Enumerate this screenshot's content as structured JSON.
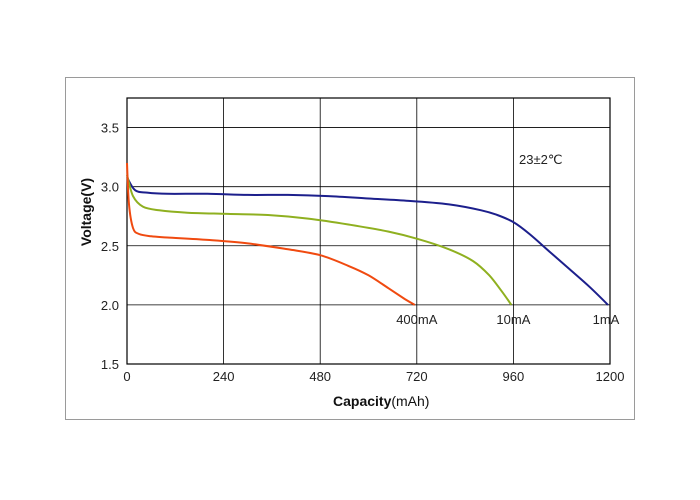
{
  "chart_data": {
    "type": "line",
    "title": "",
    "xlabel_bold": "Capacity",
    "xlabel_unit": "(mAh)",
    "ylabel": "Voltage(V)",
    "xlim": [
      0,
      1200
    ],
    "ylim": [
      1.5,
      3.75
    ],
    "xticks": [
      "0",
      "240",
      "480",
      "720",
      "960",
      "1200"
    ],
    "xtick_values": [
      0,
      240,
      480,
      720,
      960,
      1200
    ],
    "yticks": [
      "1.5",
      "2.0",
      "2.5",
      "3.0",
      "3.5"
    ],
    "ytick_values": [
      1.5,
      2.0,
      2.5,
      3.0,
      3.5
    ],
    "grid": true,
    "annotation": "23±2℃",
    "series": [
      {
        "name": "1mA",
        "color": "#1c1f8c",
        "x": [
          0,
          20,
          50,
          100,
          200,
          300,
          400,
          500,
          600,
          700,
          800,
          880,
          920,
          960,
          1000,
          1050,
          1100,
          1150,
          1195
        ],
        "y": [
          3.08,
          2.97,
          2.95,
          2.94,
          2.94,
          2.93,
          2.93,
          2.92,
          2.9,
          2.88,
          2.85,
          2.8,
          2.76,
          2.7,
          2.6,
          2.45,
          2.3,
          2.15,
          2.0
        ]
      },
      {
        "name": "10mA",
        "color": "#8fb020",
        "x": [
          0,
          15,
          40,
          80,
          150,
          250,
          350,
          450,
          550,
          650,
          720,
          800,
          860,
          900,
          930,
          955
        ],
        "y": [
          3.1,
          2.92,
          2.83,
          2.8,
          2.78,
          2.77,
          2.76,
          2.73,
          2.68,
          2.62,
          2.56,
          2.47,
          2.37,
          2.25,
          2.12,
          2.0
        ]
      },
      {
        "name": "400mA",
        "color": "#f04a10",
        "x": [
          0,
          5,
          15,
          30,
          60,
          100,
          200,
          300,
          400,
          480,
          550,
          600,
          650,
          690,
          715
        ],
        "y": [
          3.2,
          2.85,
          2.65,
          2.6,
          2.58,
          2.57,
          2.55,
          2.52,
          2.47,
          2.42,
          2.33,
          2.25,
          2.14,
          2.05,
          2.0
        ]
      }
    ],
    "series_labels": [
      {
        "text": "400mA",
        "x": 720,
        "y": 1.88
      },
      {
        "text": "10mA",
        "x": 960,
        "y": 1.88
      },
      {
        "text": "1mA",
        "x": 1190,
        "y": 1.88
      }
    ]
  }
}
